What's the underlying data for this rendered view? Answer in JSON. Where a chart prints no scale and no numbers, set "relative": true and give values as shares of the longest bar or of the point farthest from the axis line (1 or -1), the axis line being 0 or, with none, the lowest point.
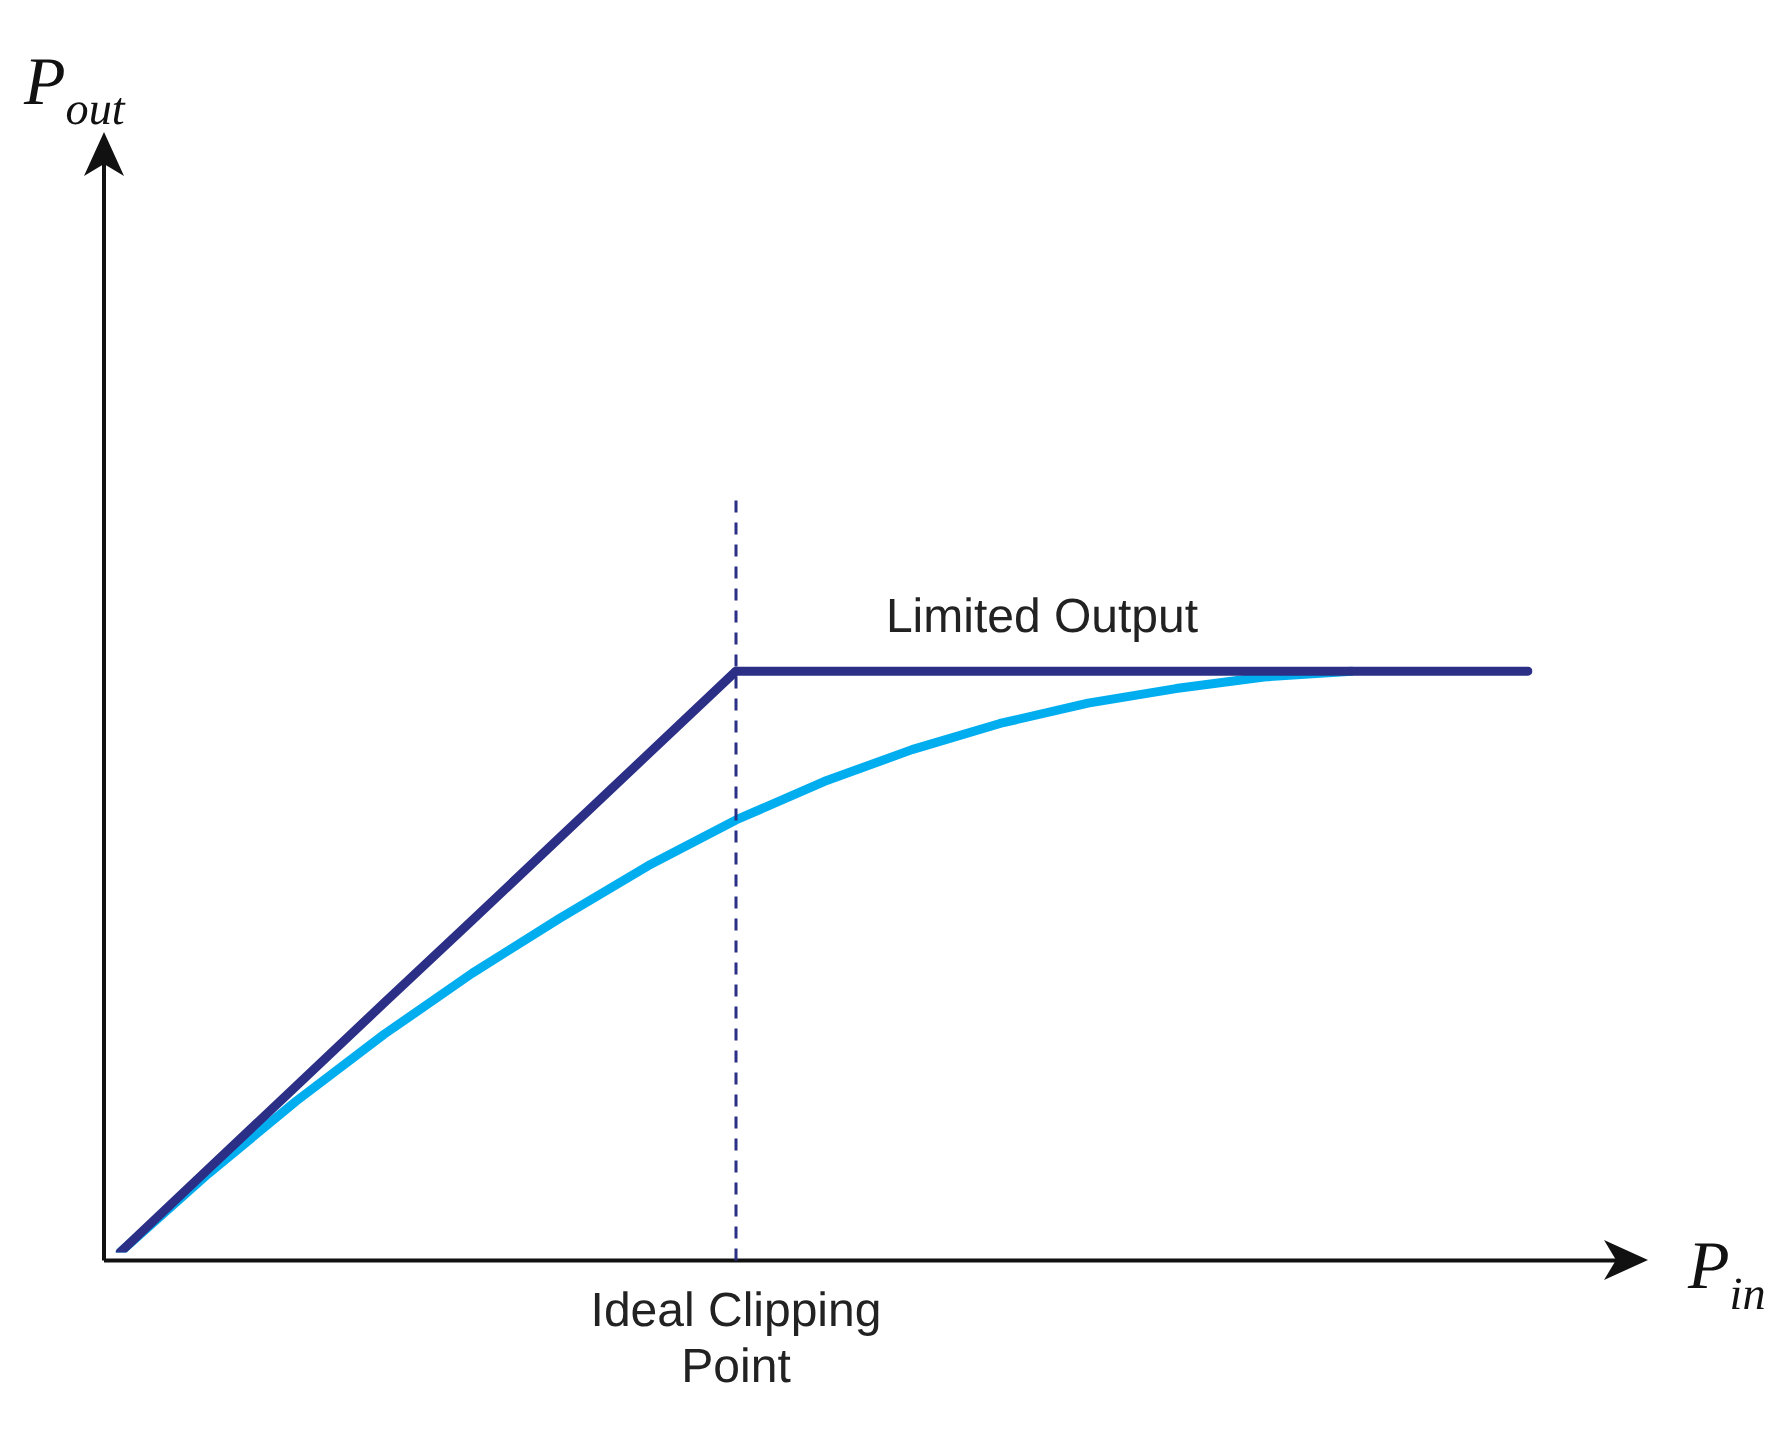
{
  "chart_data": {
    "type": "line",
    "relative": true,
    "xlabel": "P$_{in}$",
    "categories": [
      null,
      null,
      null,
      null,
      null,
      null,
      null,
      null,
      null,
      null,
      null,
      null,
      null,
      null,
      null,
      null,
      null
    ],
    "series": [
      {
        "color": "#2b2f86",
        "values": [
          0,
          0.143,
          0.286,
          0.429,
          0.571,
          0.714,
          0.857,
          1,
          1,
          1,
          1,
          1,
          1,
          1,
          1,
          1,
          1
        ]
      },
      {
        "color": "#00aeef",
        "values": [
          0,
          0.135,
          0.26,
          0.375,
          0.48,
          0.575,
          0.665,
          0.744,
          0.81,
          0.865,
          0.91,
          0.945,
          0.97,
          0.99,
          1,
          null,
          null
        ]
      }
    ],
    "ref_lines": [
      {
        "axis": "x",
        "label": "Ideal Clipping Point",
        "color": "#2b2f86",
        "line_style": "dashed"
      }
    ],
    "annotations": [
      "Limited Output",
      "P$_{out}$"
    ],
    "legend": false,
    "grid": false,
    "marker": "none",
    "line_style": "solid"
  }
}
